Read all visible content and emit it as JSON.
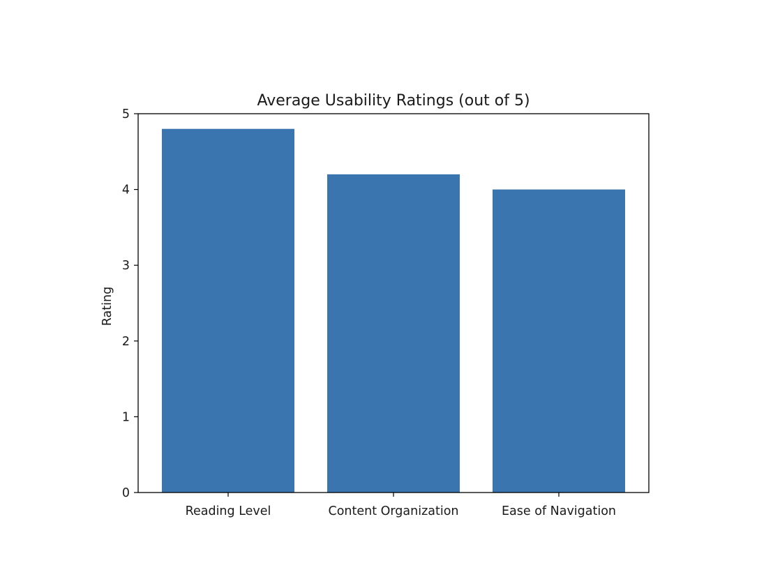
{
  "chart_data": {
    "type": "bar",
    "title": "Average Usability Ratings (out of 5)",
    "xlabel": "",
    "ylabel": "Rating",
    "categories": [
      "Reading Level",
      "Content Organization",
      "Ease of Navigation"
    ],
    "values": [
      4.8,
      4.2,
      4.0
    ],
    "ylim": [
      0,
      5
    ],
    "yticks": [
      "0",
      "1",
      "2",
      "3",
      "4",
      "5"
    ],
    "grid": false,
    "legend": "none",
    "bar_color": "#3b75af"
  }
}
